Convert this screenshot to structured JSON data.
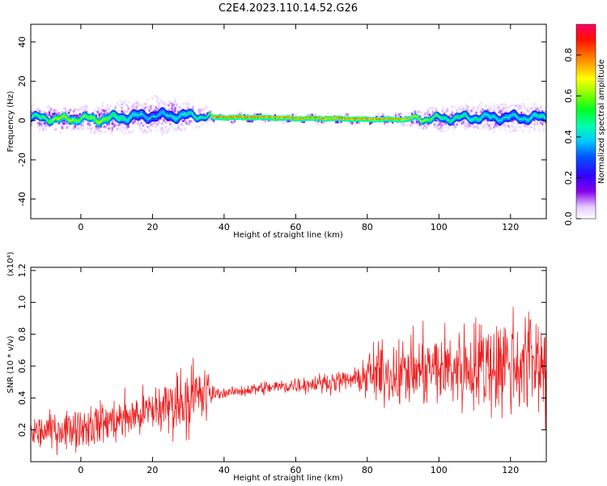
{
  "title": "C2E4.2023.110.14.52.G26",
  "chart_data": [
    {
      "type": "heatmap",
      "title": "C2E4.2023.110.14.52.G26",
      "xlabel": "Height of straight line (km)",
      "ylabel": "Frequency (Hz)",
      "xlim": [
        -14,
        130
      ],
      "ylim": [
        -50,
        49
      ],
      "x_ticks": [
        0,
        20,
        40,
        60,
        80,
        100,
        120
      ],
      "y_ticks": [
        -40,
        -20,
        0,
        20,
        40
      ],
      "colorbar": {
        "label": "Normalized spectral amplitude",
        "range": [
          0,
          0.95
        ],
        "ticks": [
          "0.0",
          "0.2",
          "0.4",
          "0.6",
          "0.8"
        ]
      },
      "ridge": {
        "x": [
          -14,
          -5,
          0,
          5,
          10,
          15,
          20,
          25,
          30,
          35,
          37,
          40,
          50,
          60,
          70,
          80,
          90,
          100,
          110,
          120,
          130
        ],
        "center": [
          1.5,
          0.5,
          1.0,
          0.5,
          1.5,
          2.0,
          2.5,
          2.5,
          2.5,
          2.0,
          1.5,
          1.5,
          1.5,
          1.0,
          1.0,
          0.5,
          0.5,
          1.0,
          1.5,
          1.5,
          1.5
        ],
        "halfwidth": [
          6,
          6,
          6,
          7,
          8,
          9,
          10,
          9,
          7,
          4,
          2,
          2,
          2,
          2,
          2,
          2,
          3,
          6,
          7,
          8,
          7
        ],
        "peak_amplitude": [
          0.55,
          0.8,
          0.7,
          0.75,
          0.6,
          0.5,
          0.45,
          0.5,
          0.55,
          0.6,
          0.95,
          0.95,
          0.95,
          0.95,
          0.95,
          0.95,
          0.9,
          0.6,
          0.55,
          0.5,
          0.55
        ]
      }
    },
    {
      "type": "line",
      "xlabel": "Height of straight line (km)",
      "ylabel": "SNR (10 * v/v)",
      "y_multiplier": "(x10⁴)",
      "xlim": [
        -14,
        130
      ],
      "ylim": [
        0,
        1.22
      ],
      "x_ticks": [
        0,
        20,
        40,
        60,
        80,
        100,
        120
      ],
      "y_ticks": [
        0.2,
        0.4,
        0.6,
        0.8,
        1.0,
        1.2
      ],
      "line_color": "#ee2222",
      "series": [
        {
          "x": [
            -14,
            0,
            10,
            20,
            30,
            35,
            37,
            40,
            50,
            60,
            70,
            78,
            80,
            90,
            100,
            110,
            120,
            130
          ],
          "mean": [
            0.18,
            0.22,
            0.26,
            0.32,
            0.4,
            0.42,
            0.43,
            0.43,
            0.46,
            0.48,
            0.5,
            0.52,
            0.54,
            0.56,
            0.58,
            0.6,
            0.62,
            0.64
          ],
          "spread": [
            0.12,
            0.15,
            0.16,
            0.18,
            0.26,
            0.24,
            0.05,
            0.03,
            0.05,
            0.06,
            0.07,
            0.08,
            0.2,
            0.24,
            0.28,
            0.34,
            0.4,
            0.42
          ]
        }
      ]
    }
  ]
}
